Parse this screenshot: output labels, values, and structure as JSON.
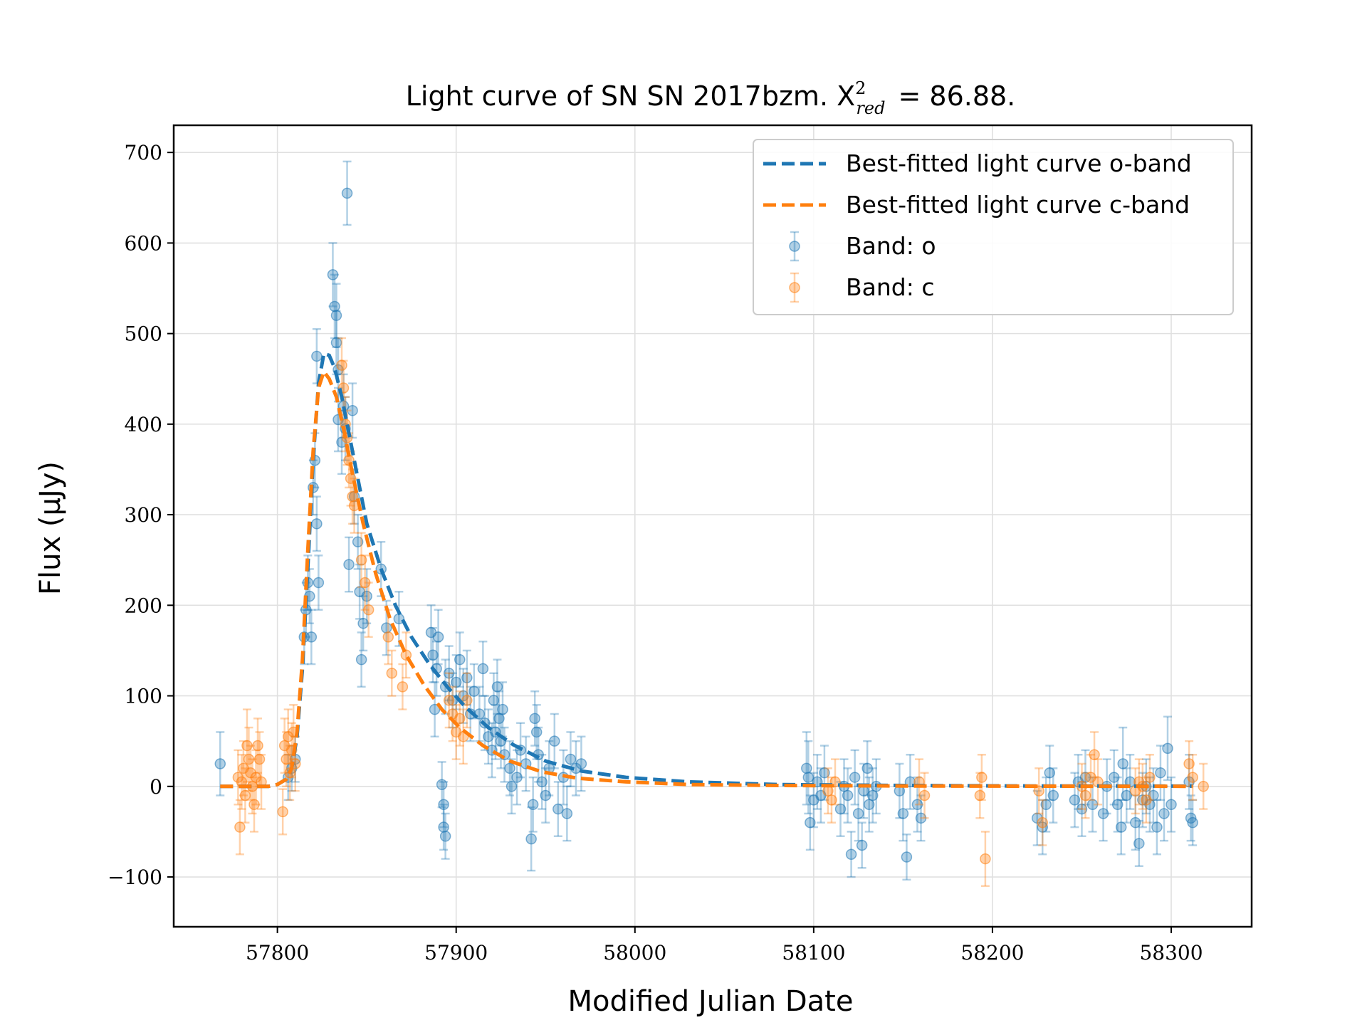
{
  "chart_data": {
    "type": "scatter",
    "title": "Light curve of SN SN 2017bzm. X",
    "title_sup": "2",
    "title_sub": "red",
    "title_tail": "= 86.88.",
    "xlabel": "Modified Julian Date",
    "ylabel": "Flux (μJy)",
    "xlim": [
      57742,
      58345
    ],
    "ylim": [
      -155,
      730
    ],
    "xticks": [
      57800,
      57900,
      58000,
      58100,
      58200,
      58300
    ],
    "yticks": [
      -100,
      0,
      100,
      200,
      300,
      400,
      500,
      600,
      700
    ],
    "ytick_labels": [
      "−100",
      "0",
      "100",
      "200",
      "300",
      "400",
      "500",
      "600",
      "700"
    ],
    "grid": true,
    "legend_position": "top-right",
    "colors": {
      "o": "#1f77b4",
      "c": "#ff7f0e"
    },
    "legend": [
      {
        "label": "Best-fitted light curve o-band",
        "kind": "dashed-line",
        "color": "#1f77b4"
      },
      {
        "label": "Best-fitted light curve c-band",
        "kind": "dashed-line",
        "color": "#ff7f0e"
      },
      {
        "label": "Band: o",
        "kind": "errorbar-marker",
        "color": "#1f77b4"
      },
      {
        "label": "Band: c",
        "kind": "errorbar-marker",
        "color": "#ff7f0e"
      }
    ],
    "fit_curves": [
      {
        "name": "Best-fitted light curve o-band",
        "color": "#1f77b4",
        "x": [
          57768,
          57795,
          57800,
          57805,
          57808,
          57811,
          57814,
          57817,
          57820,
          57823,
          57826,
          57829,
          57832,
          57836,
          57840,
          57845,
          57850,
          57858,
          57866,
          57875,
          57885,
          57895,
          57905,
          57918,
          57932,
          57950,
          57970,
          57995,
          58030,
          58080,
          58150,
          58220,
          58312
        ],
        "y": [
          0,
          0,
          2,
          8,
          20,
          55,
          130,
          240,
          360,
          445,
          478,
          476,
          462,
          430,
          390,
          340,
          290,
          240,
          200,
          165,
          135,
          110,
          88,
          65,
          46,
          28,
          17,
          10,
          5,
          2,
          1,
          0.5,
          0.3
        ]
      },
      {
        "name": "Best-fitted light curve c-band",
        "color": "#ff7f0e",
        "x": [
          57768,
          57795,
          57800,
          57805,
          57808,
          57811,
          57814,
          57817,
          57820,
          57823,
          57826,
          57829,
          57833,
          57837,
          57842,
          57848,
          57855,
          57863,
          57872,
          57882,
          57892,
          57902,
          57915,
          57930,
          57948,
          57968,
          57995,
          58030,
          58080,
          58150,
          58220,
          58312
        ],
        "y": [
          0,
          0,
          2,
          8,
          20,
          60,
          140,
          260,
          370,
          440,
          458,
          450,
          430,
          395,
          345,
          290,
          235,
          185,
          145,
          112,
          85,
          65,
          45,
          28,
          16,
          9,
          5,
          2,
          1,
          0.5,
          0.2,
          0.1
        ]
      }
    ],
    "series": [
      {
        "name": "Band: o",
        "color": "#1f77b4",
        "points": [
          [
            57768,
            25,
            35
          ],
          [
            57806,
            10,
            25
          ],
          [
            57808,
            20,
            25
          ],
          [
            57810,
            30,
            25
          ],
          [
            57815,
            165,
            30
          ],
          [
            57816,
            195,
            30
          ],
          [
            57817,
            225,
            30
          ],
          [
            57818,
            210,
            30
          ],
          [
            57819,
            165,
            30
          ],
          [
            57820,
            330,
            30
          ],
          [
            57821,
            360,
            30
          ],
          [
            57822,
            290,
            30
          ],
          [
            57822,
            475,
            30
          ],
          [
            57823,
            225,
            30
          ],
          [
            57831,
            565,
            35
          ],
          [
            57832,
            530,
            35
          ],
          [
            57833,
            490,
            35
          ],
          [
            57833,
            520,
            35
          ],
          [
            57834,
            460,
            35
          ],
          [
            57834,
            405,
            35
          ],
          [
            57836,
            380,
            35
          ],
          [
            57837,
            420,
            35
          ],
          [
            57838,
            395,
            35
          ],
          [
            57839,
            655,
            35
          ],
          [
            57840,
            245,
            30
          ],
          [
            57842,
            415,
            30
          ],
          [
            57843,
            320,
            30
          ],
          [
            57845,
            270,
            30
          ],
          [
            57846,
            215,
            30
          ],
          [
            57847,
            140,
            30
          ],
          [
            57848,
            180,
            30
          ],
          [
            57850,
            210,
            30
          ],
          [
            57858,
            240,
            30
          ],
          [
            57861,
            175,
            30
          ],
          [
            57868,
            185,
            30
          ],
          [
            57886,
            170,
            30
          ],
          [
            57887,
            145,
            30
          ],
          [
            57888,
            85,
            30
          ],
          [
            57889,
            130,
            30
          ],
          [
            57890,
            165,
            30
          ],
          [
            57892,
            2,
            25
          ],
          [
            57893,
            -20,
            25
          ],
          [
            57893,
            -45,
            25
          ],
          [
            57894,
            -55,
            25
          ],
          [
            57894,
            110,
            30
          ],
          [
            57896,
            125,
            30
          ],
          [
            57898,
            95,
            30
          ],
          [
            57900,
            115,
            30
          ],
          [
            57902,
            140,
            30
          ],
          [
            57904,
            100,
            30
          ],
          [
            57906,
            120,
            30
          ],
          [
            57908,
            80,
            30
          ],
          [
            57910,
            105,
            30
          ],
          [
            57913,
            80,
            30
          ],
          [
            57915,
            130,
            30
          ],
          [
            57916,
            70,
            30
          ],
          [
            57918,
            55,
            30
          ],
          [
            57920,
            40,
            30
          ],
          [
            57921,
            95,
            30
          ],
          [
            57922,
            60,
            30
          ],
          [
            57923,
            110,
            30
          ],
          [
            57924,
            75,
            30
          ],
          [
            57925,
            50,
            30
          ],
          [
            57926,
            85,
            30
          ],
          [
            57927,
            35,
            30
          ],
          [
            57930,
            20,
            30
          ],
          [
            57931,
            0,
            30
          ],
          [
            57934,
            10,
            30
          ],
          [
            57936,
            40,
            30
          ],
          [
            57939,
            25,
            30
          ],
          [
            57942,
            -58,
            35
          ],
          [
            57943,
            -20,
            30
          ],
          [
            57944,
            75,
            30
          ],
          [
            57945,
            60,
            30
          ],
          [
            57946,
            35,
            30
          ],
          [
            57948,
            5,
            30
          ],
          [
            57950,
            -10,
            30
          ],
          [
            57952,
            20,
            30
          ],
          [
            57955,
            50,
            30
          ],
          [
            57957,
            -25,
            30
          ],
          [
            57960,
            10,
            30
          ],
          [
            57962,
            -30,
            30
          ],
          [
            57964,
            30,
            30
          ],
          [
            57967,
            20,
            30
          ],
          [
            57970,
            25,
            30
          ],
          [
            58096,
            20,
            40
          ],
          [
            58097,
            10,
            40
          ],
          [
            58098,
            -40,
            30
          ],
          [
            58100,
            -15,
            30
          ],
          [
            58102,
            5,
            30
          ],
          [
            58104,
            -10,
            30
          ],
          [
            58106,
            15,
            30
          ],
          [
            58115,
            -25,
            30
          ],
          [
            58117,
            0,
            30
          ],
          [
            58119,
            -10,
            30
          ],
          [
            58121,
            -75,
            25
          ],
          [
            58123,
            10,
            30
          ],
          [
            58125,
            -30,
            30
          ],
          [
            58127,
            -65,
            25
          ],
          [
            58128,
            -5,
            30
          ],
          [
            58130,
            20,
            30
          ],
          [
            58131,
            -20,
            30
          ],
          [
            58133,
            -10,
            30
          ],
          [
            58135,
            0,
            30
          ],
          [
            58148,
            -5,
            30
          ],
          [
            58150,
            -30,
            30
          ],
          [
            58152,
            -78,
            25
          ],
          [
            58154,
            5,
            30
          ],
          [
            58158,
            -20,
            30
          ],
          [
            58160,
            -35,
            25
          ],
          [
            58225,
            -35,
            30
          ],
          [
            58228,
            -45,
            30
          ],
          [
            58230,
            -20,
            30
          ],
          [
            58232,
            15,
            30
          ],
          [
            58234,
            -10,
            30
          ],
          [
            58246,
            -15,
            30
          ],
          [
            58248,
            5,
            30
          ],
          [
            58250,
            -25,
            30
          ],
          [
            58252,
            10,
            30
          ],
          [
            58256,
            -20,
            30
          ],
          [
            58262,
            -30,
            30
          ],
          [
            58264,
            0,
            30
          ],
          [
            58268,
            10,
            30
          ],
          [
            58270,
            -20,
            30
          ],
          [
            58272,
            -45,
            30
          ],
          [
            58273,
            25,
            40
          ],
          [
            58275,
            -10,
            30
          ],
          [
            58277,
            5,
            30
          ],
          [
            58280,
            -40,
            30
          ],
          [
            58282,
            -63,
            25
          ],
          [
            58284,
            -15,
            30
          ],
          [
            58286,
            0,
            30
          ],
          [
            58288,
            -20,
            30
          ],
          [
            58290,
            -10,
            30
          ],
          [
            58292,
            -45,
            30
          ],
          [
            58294,
            15,
            30
          ],
          [
            58296,
            -30,
            30
          ],
          [
            58298,
            42,
            35
          ],
          [
            58300,
            -20,
            30
          ],
          [
            58310,
            5,
            30
          ],
          [
            58311,
            -35,
            25
          ],
          [
            58312,
            -40,
            25
          ]
        ]
      },
      {
        "name": "Band: c",
        "color": "#ff7f0e",
        "points": [
          [
            57778,
            10,
            30
          ],
          [
            57779,
            -45,
            30
          ],
          [
            57780,
            5,
            30
          ],
          [
            57781,
            20,
            30
          ],
          [
            57782,
            -10,
            30
          ],
          [
            57783,
            45,
            40
          ],
          [
            57784,
            30,
            35
          ],
          [
            57785,
            15,
            30
          ],
          [
            57786,
            0,
            30
          ],
          [
            57787,
            -20,
            30
          ],
          [
            57788,
            10,
            30
          ],
          [
            57789,
            45,
            30
          ],
          [
            57790,
            30,
            30
          ],
          [
            57791,
            5,
            30
          ],
          [
            57803,
            -28,
            25
          ],
          [
            57804,
            45,
            30
          ],
          [
            57805,
            30,
            30
          ],
          [
            57806,
            55,
            30
          ],
          [
            57807,
            15,
            30
          ],
          [
            57808,
            40,
            30
          ],
          [
            57809,
            60,
            30
          ],
          [
            57810,
            25,
            30
          ],
          [
            57836,
            465,
            30
          ],
          [
            57837,
            440,
            30
          ],
          [
            57838,
            400,
            30
          ],
          [
            57839,
            385,
            30
          ],
          [
            57840,
            360,
            30
          ],
          [
            57841,
            340,
            30
          ],
          [
            57842,
            320,
            30
          ],
          [
            57843,
            310,
            30
          ],
          [
            57847,
            250,
            30
          ],
          [
            57849,
            225,
            30
          ],
          [
            57851,
            195,
            30
          ],
          [
            57862,
            165,
            30
          ],
          [
            57864,
            125,
            25
          ],
          [
            57870,
            110,
            25
          ],
          [
            57872,
            145,
            25
          ],
          [
            57896,
            95,
            30
          ],
          [
            57898,
            80,
            30
          ],
          [
            57900,
            60,
            30
          ],
          [
            57902,
            75,
            30
          ],
          [
            57904,
            55,
            30
          ],
          [
            57906,
            95,
            30
          ],
          [
            58108,
            -5,
            25
          ],
          [
            58110,
            -15,
            25
          ],
          [
            58112,
            5,
            25
          ],
          [
            58159,
            5,
            25
          ],
          [
            58162,
            -10,
            25
          ],
          [
            58193,
            -10,
            25
          ],
          [
            58194,
            10,
            25
          ],
          [
            58196,
            -80,
            30
          ],
          [
            58226,
            -5,
            25
          ],
          [
            58228,
            -40,
            25
          ],
          [
            58250,
            0,
            25
          ],
          [
            58252,
            -10,
            25
          ],
          [
            58255,
            10,
            25
          ],
          [
            58257,
            35,
            25
          ],
          [
            58259,
            5,
            25
          ],
          [
            58280,
            -5,
            25
          ],
          [
            58282,
            5,
            25
          ],
          [
            58284,
            0,
            25
          ],
          [
            58286,
            -15,
            25
          ],
          [
            58288,
            10,
            25
          ],
          [
            58310,
            25,
            25
          ],
          [
            58312,
            10,
            25
          ],
          [
            58318,
            0,
            25
          ]
        ]
      }
    ]
  }
}
